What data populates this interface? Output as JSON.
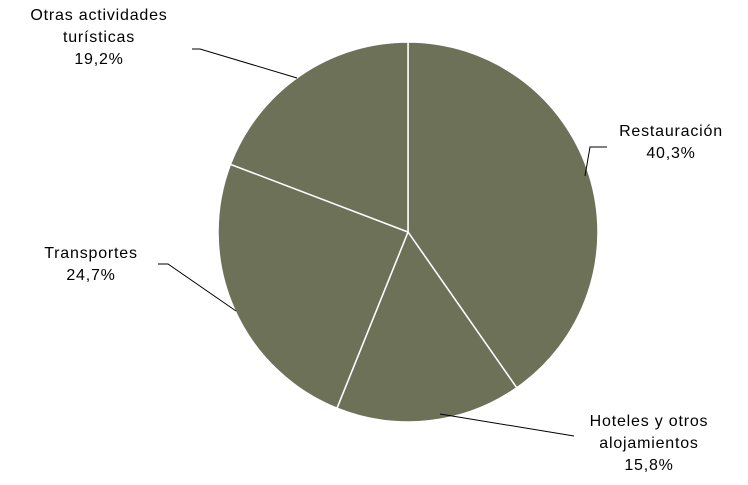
{
  "chart_data": {
    "type": "pie",
    "title": "",
    "slices": [
      {
        "category": "Restauración",
        "label_lines": [
          "Restauración"
        ],
        "value": 40.3,
        "value_label": "40,3%"
      },
      {
        "category": "Hoteles y otros alojamientos",
        "label_lines": [
          "Hoteles y otros",
          "alojamientos"
        ],
        "value": 15.8,
        "value_label": "15,8%"
      },
      {
        "category": "Transportes",
        "label_lines": [
          "Transportes"
        ],
        "value": 24.7,
        "value_label": "24,7%"
      },
      {
        "category": "Otras actividades turísticas",
        "label_lines": [
          "Otras actividades",
          "turísticas"
        ],
        "value": 19.2,
        "value_label": "19,2%"
      }
    ],
    "colors": {
      "slice_fill": "#6d7157",
      "slice_border": "#ffffff",
      "leader_line": "#000000"
    },
    "start_angle": "12 o'clock",
    "direction": "clockwise",
    "legend": "none"
  }
}
